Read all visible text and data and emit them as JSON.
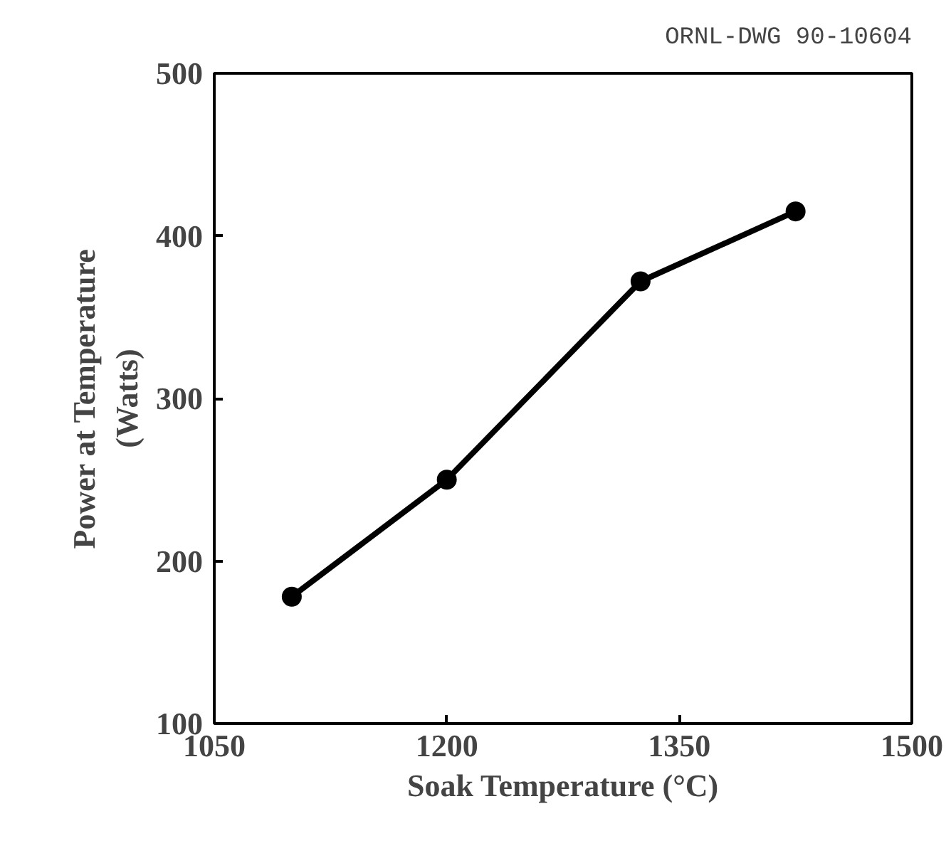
{
  "chart_data": {
    "type": "line",
    "xlabel": "Soak Temperature (°C)",
    "ylabel": "Power at Temperature\n(Watts)",
    "annotations": [
      "ORNL-DWG 90-10604"
    ],
    "x": [
      1100,
      1200,
      1325,
      1425
    ],
    "series": [
      {
        "color": "#000000",
        "values": [
          178,
          250,
          372,
          415
        ]
      }
    ],
    "xlim": [
      1050,
      1500
    ],
    "xticks": [
      1050,
      1200,
      1350,
      1500
    ],
    "ylim": [
      100,
      500
    ],
    "yticks": [
      100,
      200,
      300,
      400,
      500
    ],
    "grid": false,
    "marker": "circle",
    "line_style": "solid"
  }
}
